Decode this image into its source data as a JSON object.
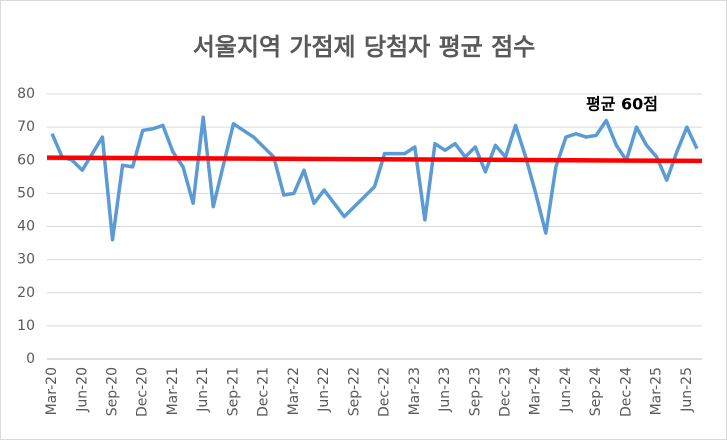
{
  "chart_data": {
    "type": "line",
    "title": "서울지역 가점제 당첨자 평균 점수",
    "annotation": "평균 60점",
    "categories": [
      "Mar-20",
      null,
      null,
      "Jun-20",
      null,
      null,
      "Sep-20",
      null,
      null,
      "Dec-20",
      null,
      null,
      "Mar-21",
      null,
      null,
      "Jun-21",
      null,
      null,
      "Sep-21",
      null,
      null,
      "Dec-21",
      null,
      null,
      "Mar-22",
      null,
      null,
      "Jun-22",
      null,
      null,
      "Sep-22",
      null,
      null,
      "Dec-22",
      null,
      null,
      "Mar-23",
      null,
      null,
      "Jun-23",
      null,
      null,
      "Sep-23",
      null,
      null,
      "Dec-23",
      null,
      null,
      "Mar-24",
      null,
      null,
      "Jun-24",
      null,
      null,
      "Sep-24",
      null,
      null,
      "Dec-24",
      null,
      null,
      "Mar-25",
      null,
      null,
      "Jun-25",
      null
    ],
    "series": [
      {
        "color": "#5b9bd5",
        "values": [
          68,
          61,
          60,
          57,
          62,
          67,
          36,
          58.5,
          58,
          69,
          69.5,
          70.5,
          62.5,
          58,
          47,
          73,
          46,
          58.5,
          71,
          69,
          67,
          64,
          61,
          49.5,
          50,
          57,
          47,
          51,
          47,
          43,
          46,
          49,
          52,
          62,
          62,
          62,
          64,
          42,
          65,
          63,
          65,
          61,
          64,
          56.5,
          64.5,
          61,
          70.5,
          61,
          50,
          38,
          58,
          67,
          68,
          67,
          67.5,
          72,
          64.5,
          60,
          70,
          64.5,
          61,
          54,
          62.5,
          70,
          63.5
        ]
      }
    ],
    "reference_line": {
      "start": 60.8,
      "end": 59.8,
      "color": "#ff0000"
    },
    "ylim": [
      0,
      80
    ],
    "yticks": [
      0,
      10,
      20,
      30,
      40,
      50,
      60,
      70,
      80
    ],
    "grid": true
  }
}
